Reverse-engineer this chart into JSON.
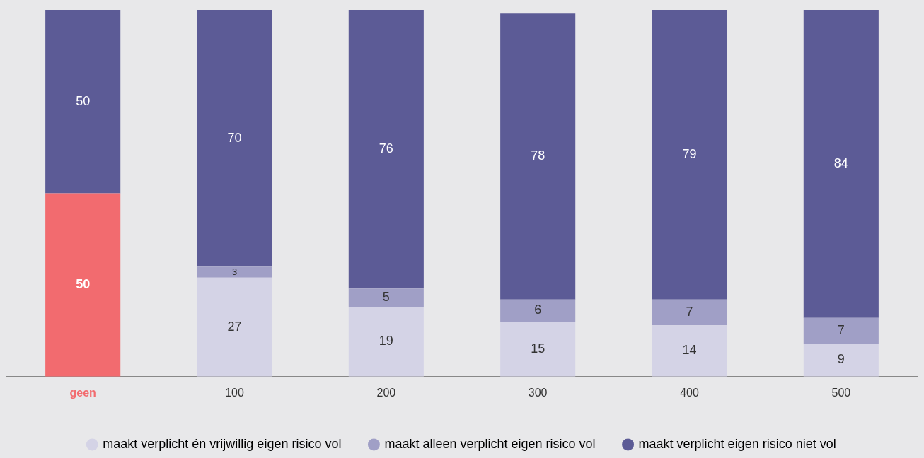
{
  "chart_data": {
    "type": "bar",
    "stacked": true,
    "data_labels": true,
    "grid": false,
    "legend": "bottom",
    "marker": "circle",
    "categories": [
      "geen",
      "100",
      "200",
      "300",
      "400",
      "500"
    ],
    "series": [
      {
        "name": "maakt verplicht én vrijwillig eigen risico vol",
        "color": "#d4d3e6",
        "colors": [
          "#f26b6f",
          "#d4d3e6",
          "#d4d3e6",
          "#d4d3e6",
          "#d4d3e6",
          "#d4d3e6"
        ],
        "values": [
          50,
          27,
          19,
          15,
          14,
          9
        ]
      },
      {
        "name": "maakt alleen verplicht eigen risico vol",
        "color": "#a09fc6",
        "values": [
          null,
          3,
          5,
          6,
          7,
          7
        ]
      },
      {
        "name": "maakt verplicht eigen risico niet vol",
        "color": "#5c5b96",
        "values": [
          50,
          70,
          76,
          78,
          79,
          84
        ]
      }
    ]
  }
}
